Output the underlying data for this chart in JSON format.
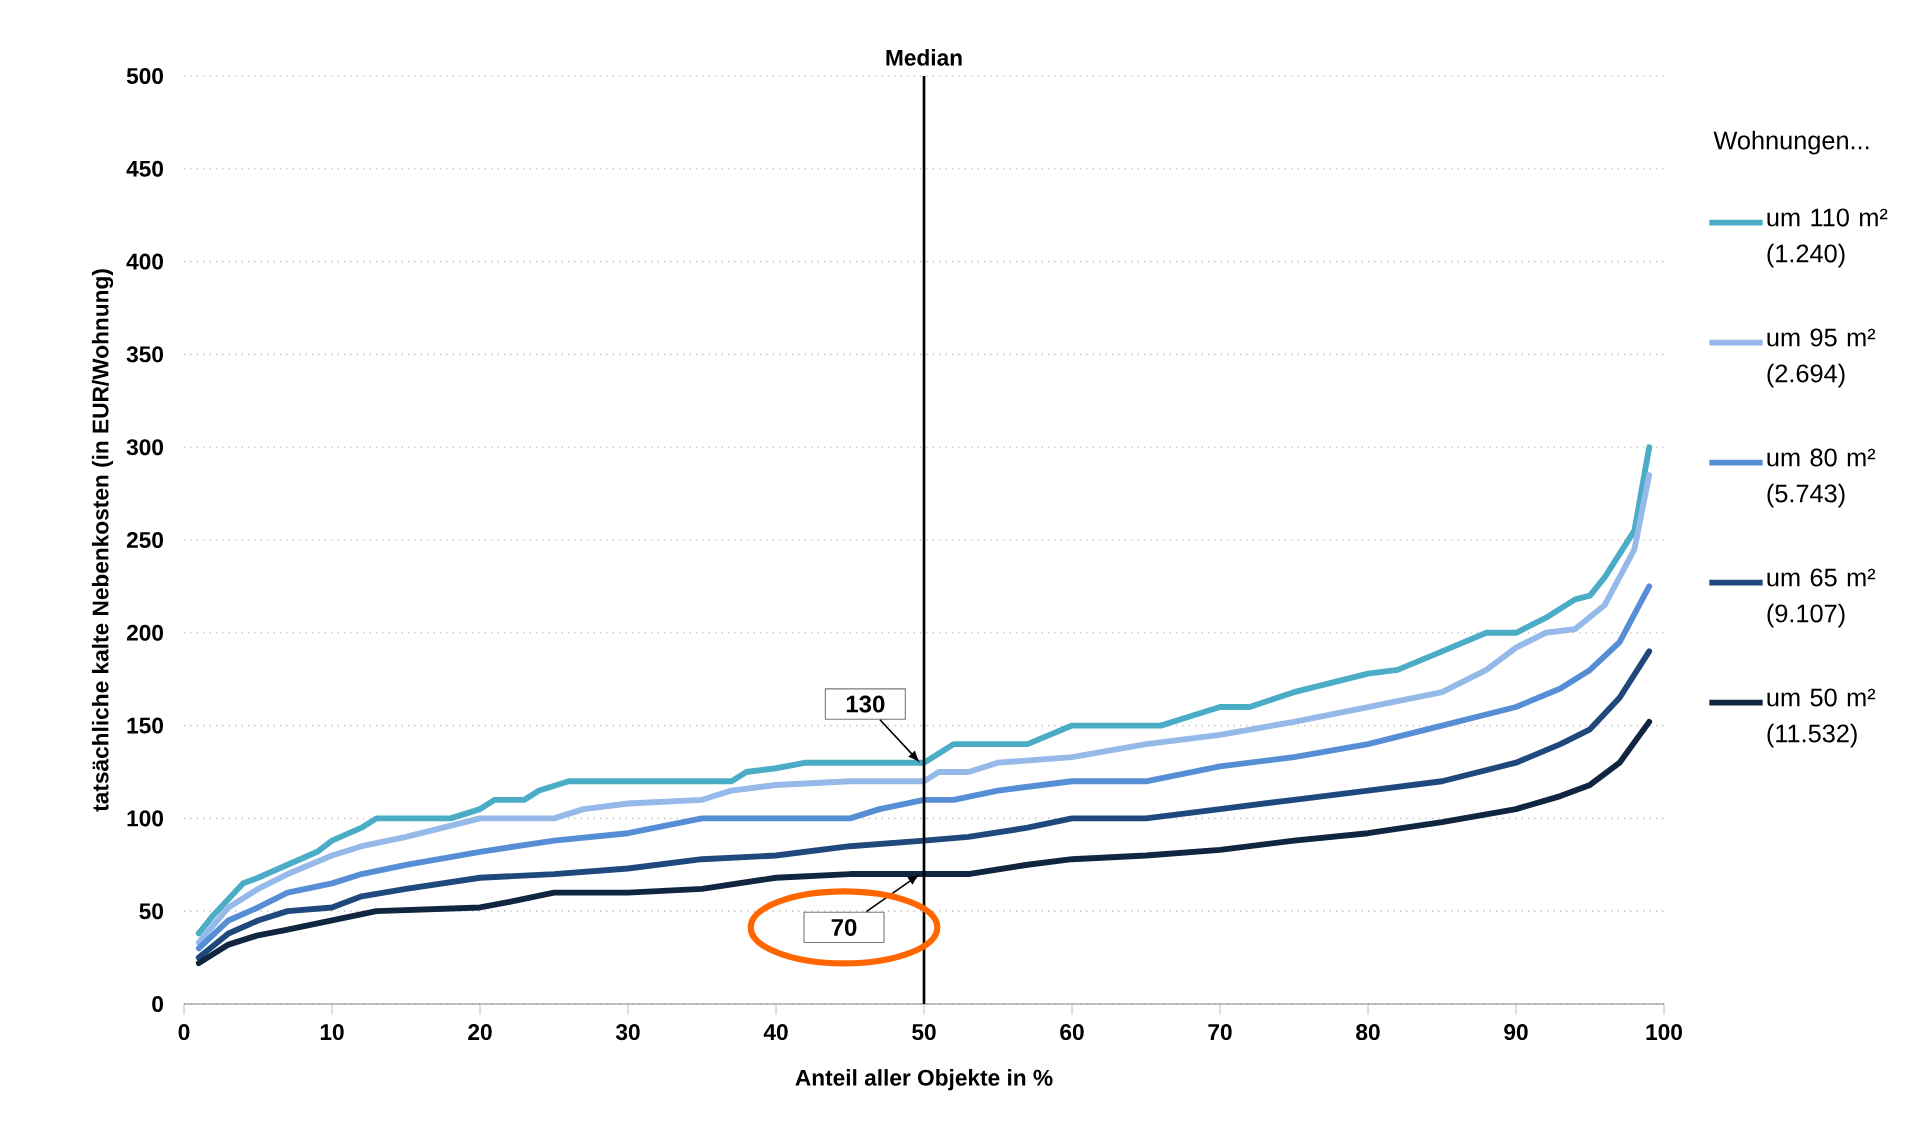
{
  "chart_data": {
    "type": "line",
    "xlabel": "Anteil aller Objekte in %",
    "ylabel": "tatsächliche kalte Nebenkosten (in EUR/Wohnung)",
    "legend_title": "Wohnungen...",
    "xlim": [
      0,
      100
    ],
    "xticks": [
      0,
      10,
      20,
      30,
      40,
      50,
      60,
      70,
      80,
      90,
      100
    ],
    "ylim": [
      0,
      500
    ],
    "yticks": [
      0,
      50,
      100,
      150,
      200,
      250,
      300,
      350,
      400,
      450,
      500
    ],
    "grid": "y",
    "legend": "right",
    "marker": "none",
    "ref_lines": [
      {
        "axis": "x",
        "value": 50,
        "label": "Median",
        "color": "#000000"
      }
    ],
    "annotations": [
      {
        "text": "130",
        "x": 50,
        "y": 130
      },
      {
        "text": "70",
        "x": 50,
        "y": 70
      }
    ],
    "series": [
      {
        "name": "um 110 m² (1.240)",
        "color": "#4bacc6",
        "x": [
          1,
          2,
          4,
          5,
          7,
          9,
          10,
          12,
          13,
          18,
          20,
          21,
          23,
          24,
          26,
          37,
          38,
          40,
          42,
          50,
          51,
          52,
          57,
          60,
          66,
          68,
          70,
          72,
          75,
          80,
          82,
          85,
          88,
          90,
          92,
          94,
          95,
          96,
          98,
          99
        ],
        "values": [
          38,
          48,
          65,
          68,
          75,
          82,
          88,
          95,
          100,
          100,
          105,
          110,
          110,
          115,
          120,
          120,
          125,
          127,
          130,
          130,
          135,
          140,
          140,
          150,
          150,
          155,
          160,
          160,
          168,
          178,
          180,
          190,
          200,
          200,
          208,
          218,
          220,
          230,
          255,
          300
        ]
      },
      {
        "name": "um 95 m² (2.694)",
        "color": "#95b9e8",
        "x": [
          1,
          3,
          5,
          7,
          10,
          12,
          15,
          20,
          25,
          27,
          30,
          35,
          37,
          40,
          45,
          50,
          51,
          53,
          55,
          60,
          65,
          70,
          75,
          80,
          85,
          88,
          90,
          92,
          94,
          96,
          98,
          99
        ],
        "values": [
          33,
          52,
          62,
          70,
          80,
          85,
          90,
          100,
          100,
          105,
          108,
          110,
          115,
          118,
          120,
          120,
          125,
          125,
          130,
          133,
          140,
          145,
          152,
          160,
          168,
          180,
          192,
          200,
          202,
          215,
          245,
          285
        ]
      },
      {
        "name": "um 80 m² (5.743)",
        "color": "#558ed5",
        "x": [
          1,
          3,
          5,
          7,
          10,
          12,
          15,
          20,
          25,
          30,
          35,
          45,
          47,
          50,
          52,
          55,
          60,
          65,
          70,
          75,
          80,
          85,
          90,
          93,
          95,
          97,
          99
        ],
        "values": [
          30,
          45,
          52,
          60,
          65,
          70,
          75,
          82,
          88,
          92,
          100,
          100,
          105,
          110,
          110,
          115,
          120,
          120,
          128,
          133,
          140,
          150,
          160,
          170,
          180,
          195,
          225
        ]
      },
      {
        "name": "um 65 m² (9.107)",
        "color": "#1f497d",
        "x": [
          1,
          3,
          5,
          7,
          10,
          12,
          15,
          20,
          25,
          30,
          35,
          40,
          45,
          50,
          53,
          57,
          60,
          65,
          70,
          75,
          80,
          85,
          90,
          93,
          95,
          97,
          99
        ],
        "values": [
          25,
          38,
          45,
          50,
          52,
          58,
          62,
          68,
          70,
          73,
          78,
          80,
          85,
          88,
          90,
          95,
          100,
          100,
          105,
          110,
          115,
          120,
          130,
          140,
          148,
          165,
          190
        ]
      },
      {
        "name": "um 50 m² (11.532)",
        "color": "#10253f",
        "x": [
          1,
          3,
          5,
          7,
          10,
          13,
          20,
          22,
          25,
          30,
          35,
          40,
          45,
          50,
          53,
          57,
          60,
          65,
          70,
          75,
          80,
          85,
          90,
          93,
          95,
          97,
          99
        ],
        "values": [
          22,
          32,
          37,
          40,
          45,
          50,
          52,
          55,
          60,
          60,
          62,
          68,
          70,
          70,
          70,
          75,
          78,
          80,
          83,
          88,
          92,
          98,
          105,
          112,
          118,
          130,
          152
        ]
      }
    ]
  }
}
